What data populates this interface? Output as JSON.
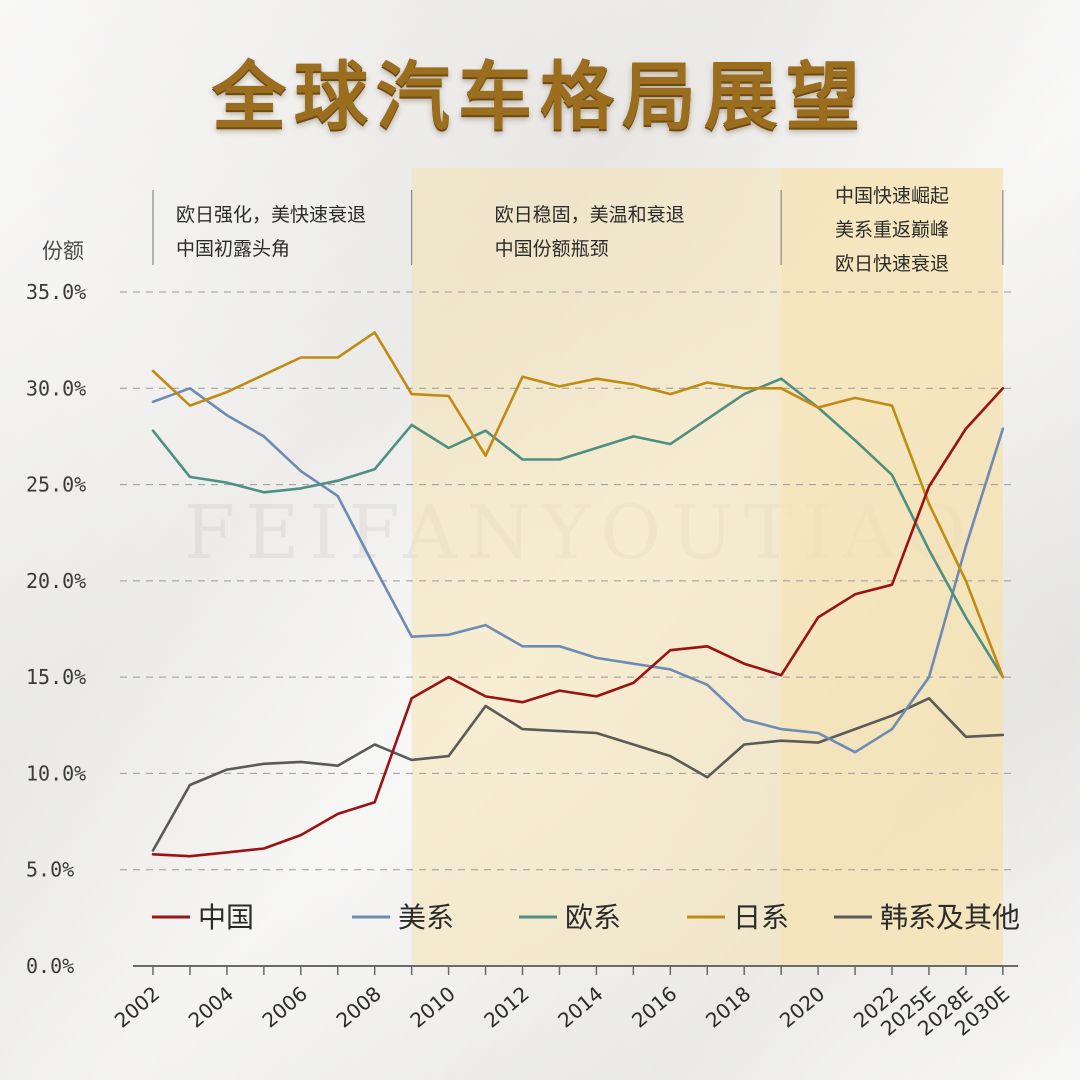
{
  "title": "全球汽车格局展望",
  "watermark": "FEIFANYOUTIAO",
  "colors": {
    "china": "#9b1212",
    "us": "#6e8bb4",
    "europe": "#4d8f80",
    "japan": "#c08b14",
    "korea_other": "#5b5a58",
    "band_fill": "#f6e2ad",
    "grid": "#9a9a9a"
  },
  "chart_data": {
    "type": "line",
    "ylabel": "份额",
    "ylim": [
      0,
      35
    ],
    "yticks": [
      "0.0%",
      "5.0%",
      "10.0%",
      "15.0%",
      "20.0%",
      "25.0%",
      "30.0%",
      "35.0%"
    ],
    "ytick_values": [
      0,
      5,
      10,
      15,
      20,
      25,
      30,
      35
    ],
    "grid": true,
    "legend_position": "bottom",
    "x": [
      "2002",
      "2003",
      "2004",
      "2005",
      "2006",
      "2007",
      "2008",
      "2009",
      "2010",
      "2011",
      "2012",
      "2013",
      "2014",
      "2015",
      "2016",
      "2017",
      "2018",
      "2019",
      "2020",
      "2021",
      "2022",
      "2025E",
      "2028E",
      "2030E"
    ],
    "x_tick_labels": [
      "2002",
      "",
      "2004",
      "",
      "2006",
      "",
      "2008",
      "",
      "2010",
      "",
      "2012",
      "",
      "2014",
      "",
      "2016",
      "",
      "2018",
      "",
      "2020",
      "",
      "2022",
      "2025E",
      "2028E",
      "2030E"
    ],
    "series": [
      {
        "name": "中国",
        "color_key": "china",
        "values": [
          5.8,
          5.7,
          5.9,
          6.1,
          6.8,
          7.9,
          8.5,
          13.9,
          15.0,
          14.0,
          13.7,
          14.3,
          14.0,
          14.7,
          16.4,
          16.6,
          15.7,
          15.1,
          18.1,
          19.3,
          19.8,
          24.9,
          27.9,
          30.0
        ]
      },
      {
        "name": "美系",
        "color_key": "us",
        "values": [
          29.3,
          30.0,
          28.6,
          27.5,
          25.7,
          24.4,
          20.7,
          17.1,
          17.2,
          17.7,
          16.6,
          16.6,
          16.0,
          15.7,
          15.4,
          14.6,
          12.8,
          12.3,
          12.1,
          11.1,
          12.3,
          15.0,
          21.8,
          27.9
        ]
      },
      {
        "name": "欧系",
        "color_key": "europe",
        "values": [
          27.8,
          25.4,
          25.1,
          24.6,
          24.8,
          25.2,
          25.8,
          28.1,
          26.9,
          27.8,
          26.3,
          26.3,
          26.9,
          27.5,
          27.1,
          28.4,
          29.7,
          30.5,
          29.0,
          27.3,
          25.5,
          21.6,
          18.1,
          15.0
        ]
      },
      {
        "name": "日系",
        "color_key": "japan",
        "values": [
          30.9,
          29.1,
          29.8,
          30.7,
          31.6,
          31.6,
          32.9,
          29.7,
          29.6,
          26.5,
          30.6,
          30.1,
          30.5,
          30.2,
          29.7,
          30.3,
          30.0,
          30.0,
          29.0,
          29.5,
          29.1,
          24.0,
          20.0,
          15.0
        ]
      },
      {
        "name": "韩系及其他",
        "color_key": "korea_other",
        "values": [
          6.0,
          9.4,
          10.2,
          10.5,
          10.6,
          10.4,
          11.5,
          10.7,
          10.9,
          13.5,
          12.3,
          12.2,
          12.1,
          11.5,
          10.9,
          9.8,
          11.5,
          11.7,
          11.6,
          12.3,
          13.0,
          13.9,
          11.9,
          12.0
        ]
      }
    ],
    "periods": [
      {
        "from": "2002",
        "to": "2009",
        "shaded": false,
        "lines": [
          "欧日强化，美快速衰退",
          "中国初露头角"
        ]
      },
      {
        "from": "2009",
        "to": "2019",
        "shaded": true,
        "lines": [
          "欧日稳固，美温和衰退",
          "中国份额瓶颈"
        ]
      },
      {
        "from": "2019",
        "to": "2030E",
        "shaded": true,
        "lines": [
          "中国快速崛起",
          "美系重返巅峰",
          "欧日快速衰退"
        ]
      }
    ]
  }
}
